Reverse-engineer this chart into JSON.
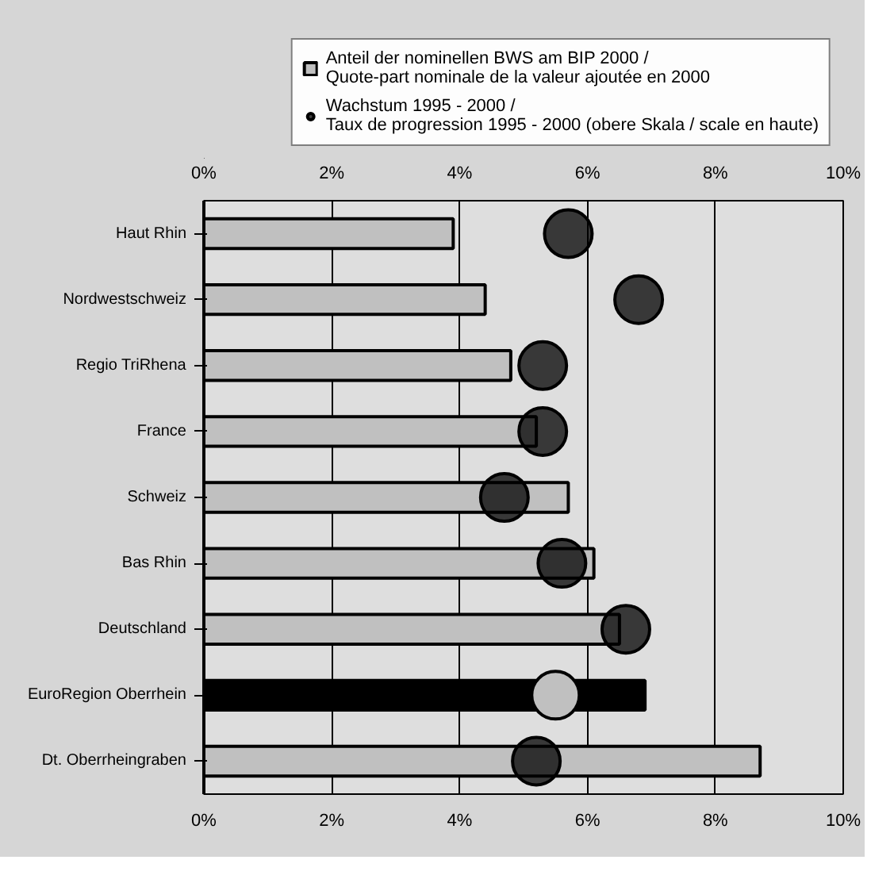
{
  "chart_data": {
    "type": "bar",
    "orientation": "horizontal",
    "categories": [
      "Haut Rhin",
      "Nordwestschweiz",
      "Regio TriRhena",
      "France",
      "Schweiz",
      "Bas Rhin",
      "Deutschland",
      "EuroRegion Oberrhein",
      "Dt. Oberrheingraben"
    ],
    "series": [
      {
        "name": "Anteil der nominellen BWS am BIP 2000 /\nQuote-part nominale de la valeur ajoutée en 2000",
        "type": "bar",
        "color": "#c0c0c0",
        "colors": [
          "#c0c0c0",
          "#c0c0c0",
          "#c0c0c0",
          "#c0c0c0",
          "#c0c0c0",
          "#c0c0c0",
          "#c0c0c0",
          "#000000",
          "#c0c0c0"
        ],
        "values": [
          3.9,
          4.4,
          4.8,
          5.2,
          5.7,
          6.1,
          6.5,
          6.9,
          8.7
        ]
      },
      {
        "name": "Wachstum 1995 - 2000 /\nTaux de progression 1995 - 2000 (obere Skala / scale en haute)",
        "type": "scatter",
        "axis": "x2",
        "color": "#000000",
        "colors": [
          "#000000",
          "#000000",
          "#000000",
          "#000000",
          "#000000",
          "#000000",
          "#000000",
          "#c0c0c0",
          "#000000"
        ],
        "values": [
          5.7,
          6.8,
          5.3,
          5.3,
          4.7,
          5.6,
          6.6,
          5.5,
          5.2
        ]
      }
    ],
    "xlim": [
      0,
      10
    ],
    "xticks": [
      {
        "value": 0,
        "label": "0%"
      },
      {
        "value": 2,
        "label": "2%"
      },
      {
        "value": 4,
        "label": "4%"
      },
      {
        "value": 6,
        "label": "6%"
      },
      {
        "value": 8,
        "label": "8%"
      },
      {
        "value": 10,
        "label": "10%"
      }
    ],
    "x2lim": [
      0,
      10
    ],
    "x2ticks": [
      {
        "value": 0,
        "label": "0%"
      },
      {
        "value": 2,
        "label": "2%"
      },
      {
        "value": 4,
        "label": "4%"
      },
      {
        "value": 6,
        "label": "6%"
      },
      {
        "value": 8,
        "label": "8%"
      },
      {
        "value": 10,
        "label": "10%"
      }
    ],
    "grid": "x",
    "legend": "top",
    "marker": "circle"
  }
}
